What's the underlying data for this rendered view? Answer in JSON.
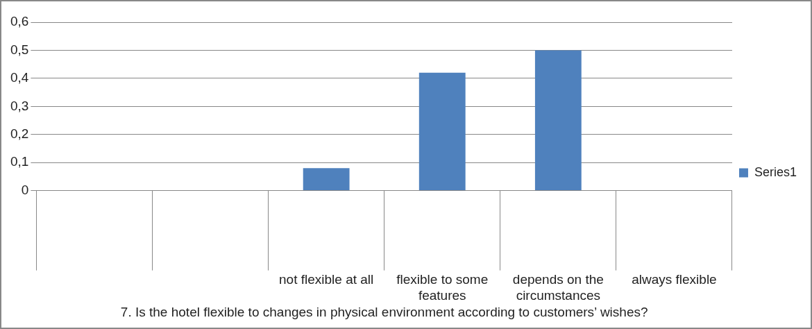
{
  "chart_data": {
    "type": "bar",
    "categories": [
      null,
      null,
      "not flexible at all",
      "flexible to some features",
      "depends on the circumstances",
      "always flexible"
    ],
    "series": [
      {
        "name": "Series1",
        "color": "#4f81bd",
        "values": [
          null,
          null,
          0.08,
          0.42,
          0.5,
          null
        ]
      }
    ],
    "xlabel": "7. Is the hotel flexible to changes in physical environment according to customers’ wishes?",
    "ylim": [
      0,
      0.6
    ],
    "yticks": [
      {
        "value": 0,
        "label": "0"
      },
      {
        "value": 0.1,
        "label": "0,1"
      },
      {
        "value": 0.2,
        "label": "0,2"
      },
      {
        "value": 0.3,
        "label": "0,3"
      },
      {
        "value": 0.4,
        "label": "0,4"
      },
      {
        "value": 0.5,
        "label": "0,5"
      },
      {
        "value": 0.6,
        "label": "0,6"
      }
    ],
    "grid": "y",
    "legend": "right"
  }
}
